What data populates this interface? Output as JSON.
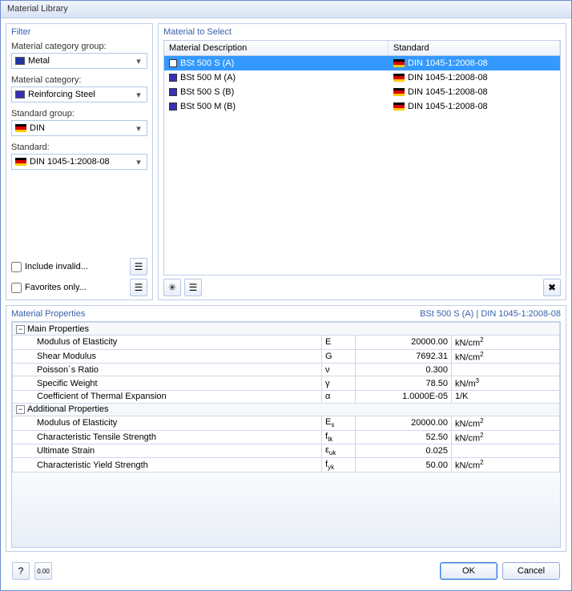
{
  "window": {
    "title": "Material Library"
  },
  "filter": {
    "title": "Filter",
    "category_group_label": "Material category group:",
    "category_group_value": "Metal",
    "category_group_swatch": "#2233aa",
    "category_label": "Material category:",
    "category_value": "Reinforcing Steel",
    "category_swatch": "#3a2fb5",
    "std_group_label": "Standard group:",
    "std_group_value": "DIN",
    "std_label": "Standard:",
    "std_value": "DIN 1045-1:2008-08",
    "flag_colors": [
      "#000000",
      "#dd0000",
      "#ffcc00"
    ],
    "include_invalid_label": "Include invalid...",
    "favorites_only_label": "Favorites only..."
  },
  "select": {
    "title": "Material to Select",
    "col_desc": "Material Description",
    "col_std": "Standard",
    "rows": [
      {
        "desc": "BSt 500 S (A)",
        "std": "DIN 1045-1:2008-08",
        "selected": true,
        "swatch": "#ffffff"
      },
      {
        "desc": "BSt 500 M (A)",
        "std": "DIN 1045-1:2008-08",
        "selected": false,
        "swatch": "#3a2fb5"
      },
      {
        "desc": "BSt 500 S (B)",
        "std": "DIN 1045-1:2008-08",
        "selected": false,
        "swatch": "#3a2fb5"
      },
      {
        "desc": "BSt 500 M (B)",
        "std": "DIN 1045-1:2008-08",
        "selected": false,
        "swatch": "#3a2fb5"
      }
    ]
  },
  "props": {
    "title": "Material Properties",
    "context": "BSt 500 S (A)  |  DIN 1045-1:2008-08",
    "group_main": "Main Properties",
    "group_add": "Additional Properties",
    "rows_main": [
      {
        "name": "Modulus of Elasticity",
        "sym_html": "E",
        "val": "20000.00",
        "unit_html": "kN/cm<sup>2</sup>"
      },
      {
        "name": "Shear Modulus",
        "sym_html": "G",
        "val": "7692.31",
        "unit_html": "kN/cm<sup>2</sup>"
      },
      {
        "name": "Poisson´s Ratio",
        "sym_html": "ν",
        "val": "0.300",
        "unit_html": ""
      },
      {
        "name": "Specific Weight",
        "sym_html": "γ",
        "val": "78.50",
        "unit_html": "kN/m<sup>3</sup>"
      },
      {
        "name": "Coefficient of Thermal Expansion",
        "sym_html": "α",
        "val": "1.0000E-05",
        "unit_html": "1/K"
      }
    ],
    "rows_add": [
      {
        "name": "Modulus of Elasticity",
        "sym_html": "E<sub>s</sub>",
        "val": "20000.00",
        "unit_html": "kN/cm<sup>2</sup>"
      },
      {
        "name": "Characteristic Tensile Strength",
        "sym_html": "f<sub>tk</sub>",
        "val": "52.50",
        "unit_html": "kN/cm<sup>2</sup>"
      },
      {
        "name": "Ultimate Strain",
        "sym_html": "ε<sub>uk</sub>",
        "val": "0.025",
        "unit_html": ""
      },
      {
        "name": "Characteristic Yield Strength",
        "sym_html": "f<sub>yk</sub>",
        "val": "50.00",
        "unit_html": "kN/cm<sup>2</sup>"
      }
    ]
  },
  "footer": {
    "ok": "OK",
    "cancel": "Cancel"
  },
  "colors": {
    "selection": "#3399ff"
  }
}
